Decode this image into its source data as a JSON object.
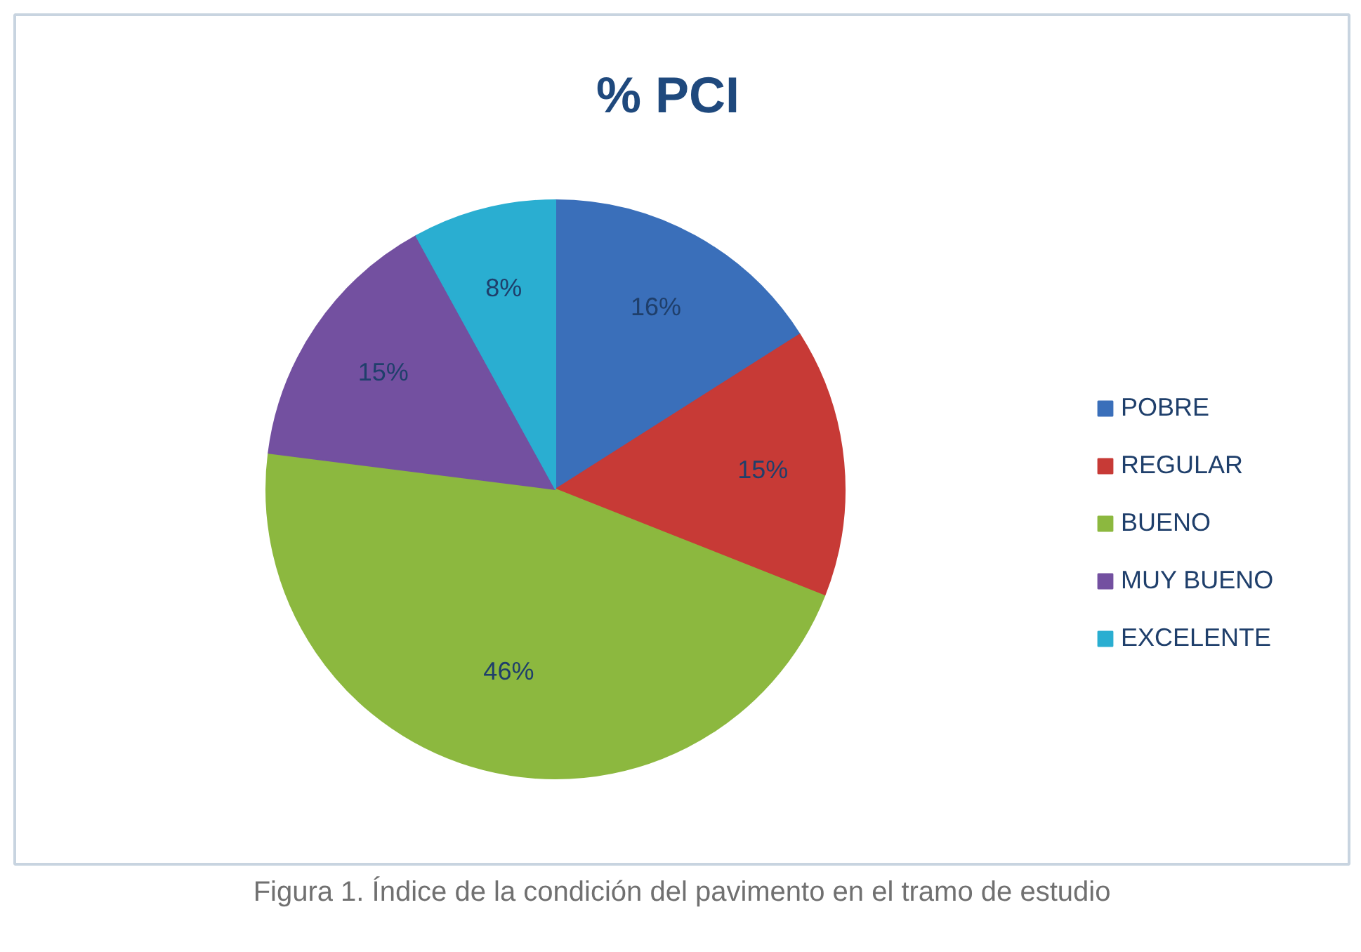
{
  "chart_data": {
    "type": "pie",
    "title": "% PCI",
    "categories": [
      "POBRE",
      "REGULAR",
      "BUENO",
      "MUY BUENO",
      "EXCELENTE"
    ],
    "values": [
      16,
      15,
      46,
      15,
      8
    ],
    "colors": [
      "#3a6fba",
      "#c73a36",
      "#8cb83f",
      "#7350a0",
      "#2aaed1"
    ],
    "value_labels": [
      "16%",
      "15%",
      "46%",
      "15%",
      "8%"
    ],
    "legend": "right",
    "annotations": [
      "Figura 1. Índice de la condición del pavimento en el tramo de estudio"
    ]
  }
}
